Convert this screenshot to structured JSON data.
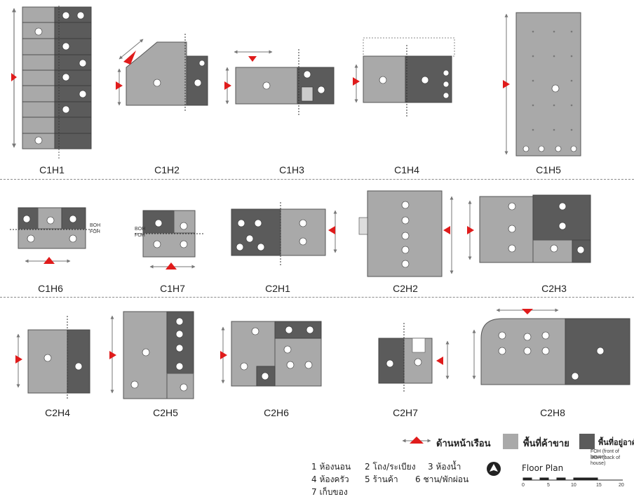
{
  "plans": {
    "c1h1": "C1H1",
    "c1h2": "C1H2",
    "c1h3": "C1H3",
    "c1h4": "C1H4",
    "c1h5": "C1H5",
    "c1h6": "C1H6",
    "c1h7": "C1H7",
    "c2h1": "C2H1",
    "c2h2": "C2H2",
    "c2h3": "C2H3",
    "c2h4": "C2H4",
    "c2h5": "C2H5",
    "c2h6": "C2H6",
    "c2h7": "C2H7",
    "c2h8": "C2H8"
  },
  "legend": {
    "front": "ด้านหน้าเรือน",
    "commercial": "พื้นที่ค้าขาย",
    "residential": "พื้นที่อยู่อาศัย",
    "foh": "FOH (front of house)",
    "boh": "BOH (back of house)",
    "items": [
      "1 ห้องนอน",
      "2 โถง/ระเบียง",
      "3 ห้องน้ำ",
      "4 ห้องครัว",
      "5 ร้านค้า",
      "6 ชาน/พักผ่อน",
      "7 เก็บของ"
    ],
    "floor_plan": "Floor Plan",
    "scale_ticks": [
      "0",
      "5",
      "10",
      "15",
      "20"
    ]
  },
  "marks": {
    "boh": "BOH",
    "foh": "FOH"
  },
  "colors": {
    "commercial": "#a9a9a9",
    "residential": "#5b5b5b",
    "front_arrow": "#e01b1b"
  }
}
